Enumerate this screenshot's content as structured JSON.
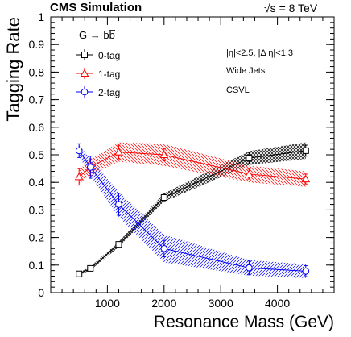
{
  "header": {
    "experiment": "CMS Simulation",
    "energy": "√s = 8 TeV"
  },
  "annotations": {
    "legend_header": "G → bb̅",
    "cut1": "|η|<2.5, |Δ η|<1.3",
    "cut2": "Wide Jets",
    "cut3": "CSVL"
  },
  "chart_data": {
    "type": "line",
    "xlabel": "Resonance Mass (GeV)",
    "ylabel": "Tagging Rate",
    "xlim": [
      0,
      5000
    ],
    "ylim": [
      0,
      1
    ],
    "xticks": [
      1000,
      2000,
      3000,
      4000
    ],
    "yticks": [
      0,
      0.1,
      0.2,
      0.3,
      0.4,
      0.5,
      0.6,
      0.7,
      0.8,
      0.9,
      1
    ],
    "grid": false,
    "legend_position": "top-left",
    "x": [
      500,
      700,
      1200,
      2000,
      3500,
      4500
    ],
    "series": [
      {
        "name": "0-tag",
        "color": "#000000",
        "marker": "open-square",
        "values": [
          0.068,
          0.088,
          0.175,
          0.345,
          0.488,
          0.515
        ],
        "errors": [
          0.005,
          0.006,
          0.008,
          0.012,
          0.02,
          0.02
        ],
        "band": [
          0.005,
          0.006,
          0.01,
          0.015,
          0.025,
          0.03
        ]
      },
      {
        "name": "1-tag",
        "color": "#ff0000",
        "marker": "open-triangle",
        "values": [
          0.42,
          0.455,
          0.51,
          0.5,
          0.43,
          0.412
        ],
        "errors": [
          0.03,
          0.03,
          0.025,
          0.022,
          0.018,
          0.018
        ],
        "band": [
          0.025,
          0.028,
          0.035,
          0.04,
          0.03,
          0.028
        ]
      },
      {
        "name": "2-tag",
        "color": "#0000ff",
        "marker": "open-circle",
        "values": [
          0.515,
          0.455,
          0.32,
          0.16,
          0.09,
          0.078
        ],
        "errors": [
          0.025,
          0.04,
          0.04,
          0.03,
          0.025,
          0.02
        ],
        "band": [
          0.02,
          0.03,
          0.045,
          0.05,
          0.028,
          0.025
        ]
      }
    ]
  }
}
